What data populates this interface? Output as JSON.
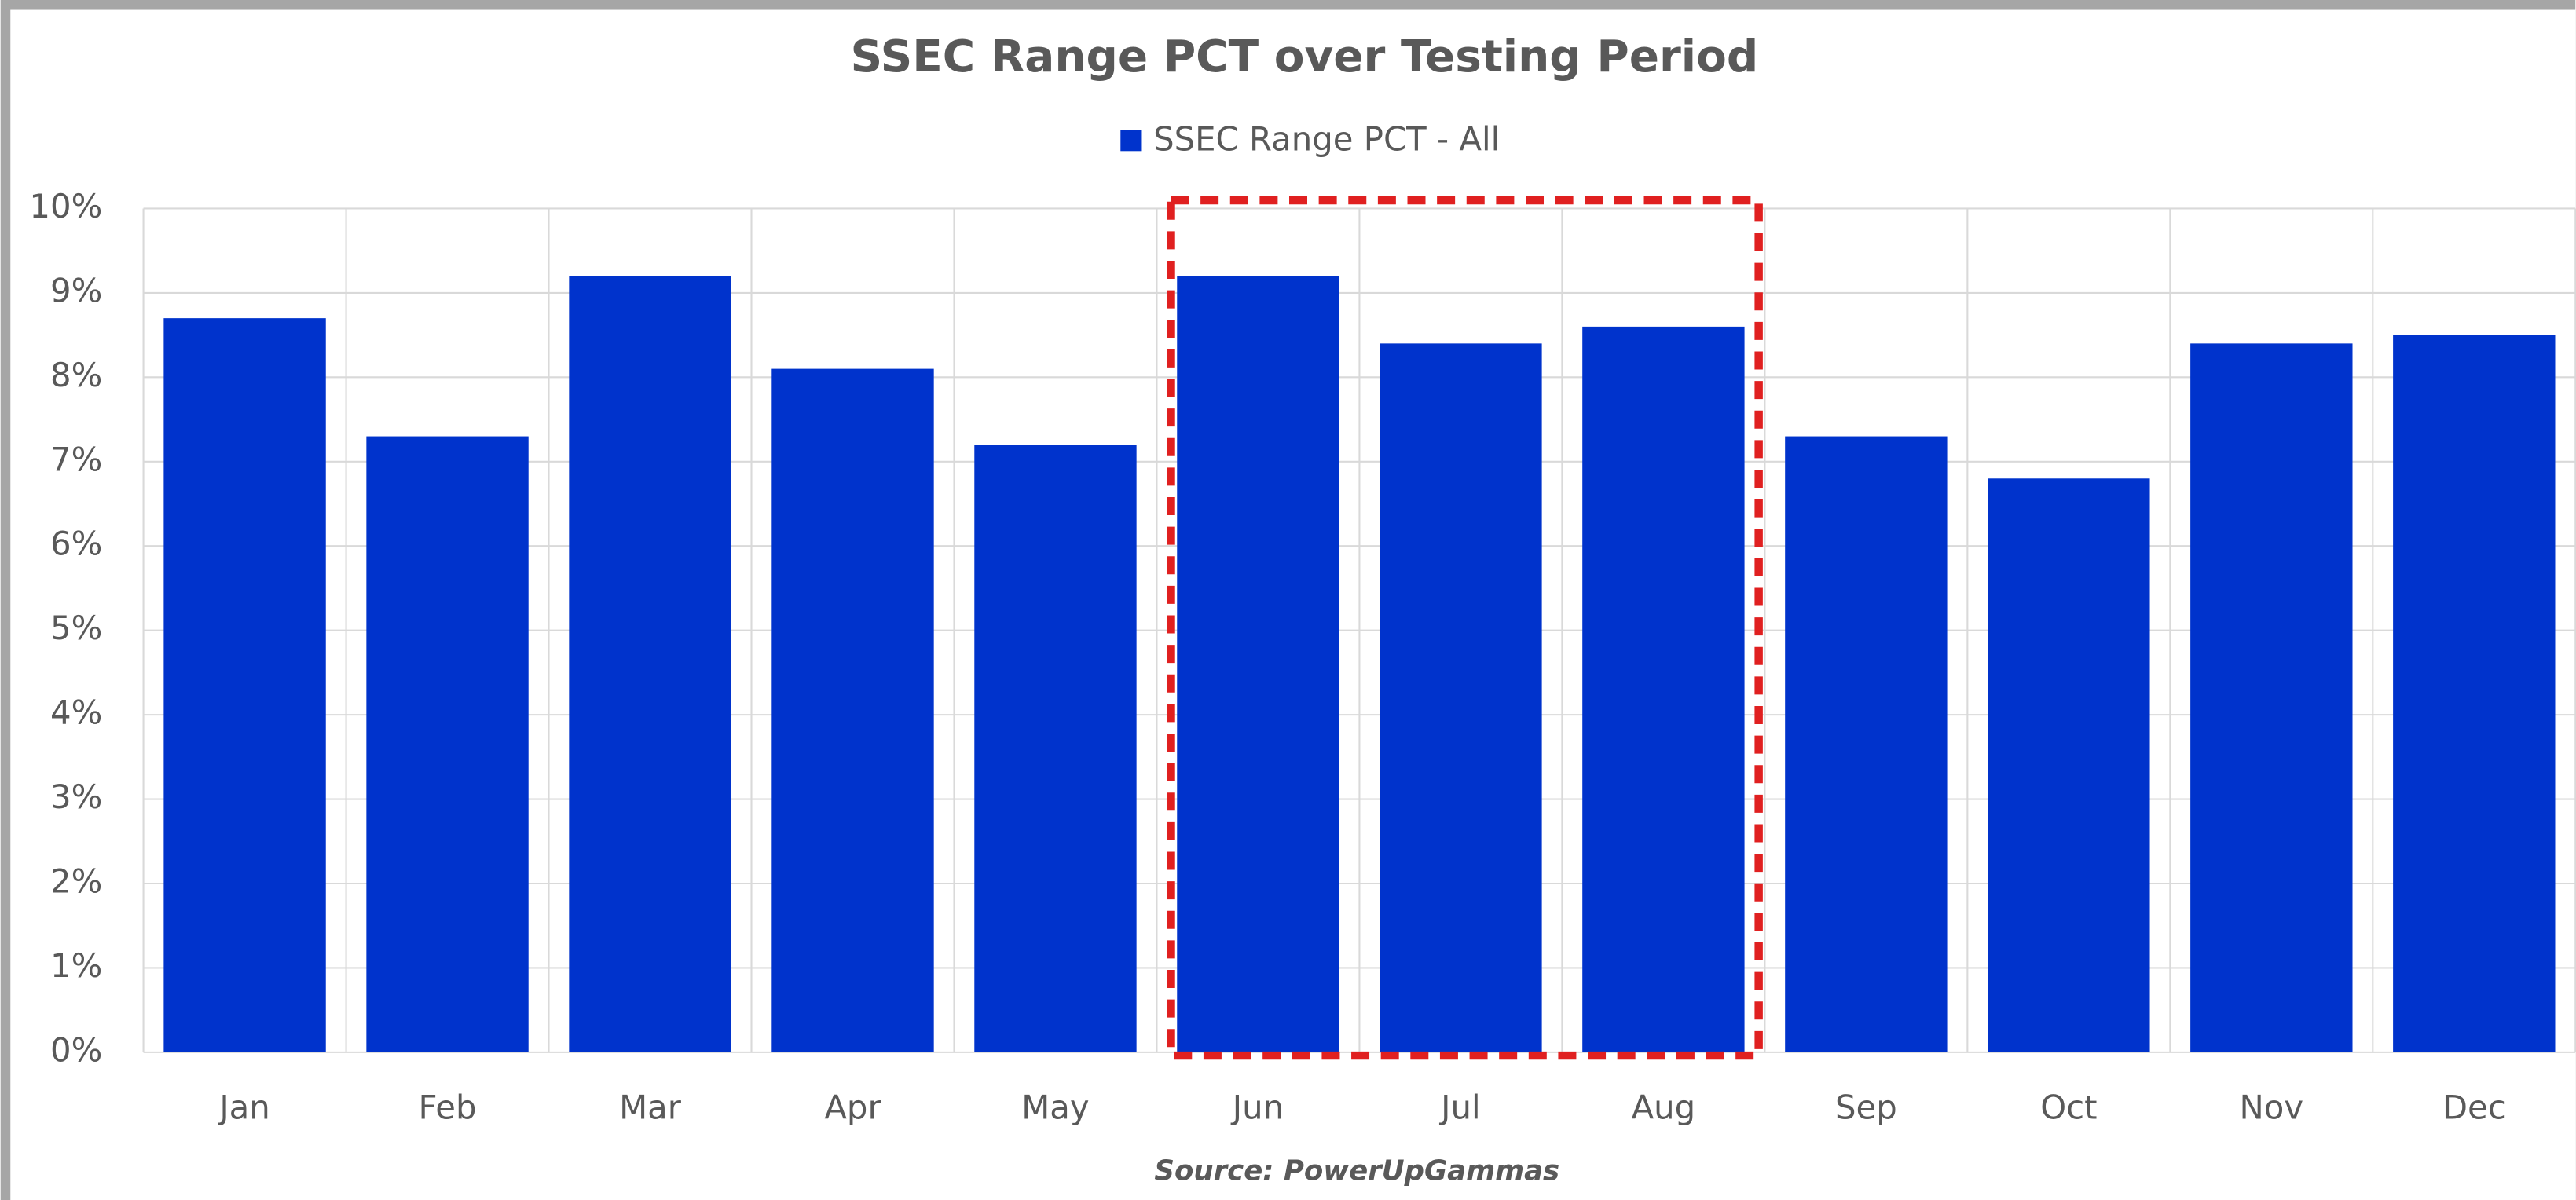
{
  "chart_data": {
    "type": "bar",
    "title": "SSEC Range PCT over Testing Period",
    "source": "Source: PowerUpGammas",
    "categories": [
      "Jan",
      "Feb",
      "Mar",
      "Apr",
      "May",
      "Jun",
      "Jul",
      "Aug",
      "Sep",
      "Oct",
      "Nov",
      "Dec"
    ],
    "series": [
      {
        "name": "SSEC Range PCT - All",
        "color": "#0033cc",
        "values": [
          8.7,
          7.3,
          9.2,
          8.1,
          7.2,
          9.2,
          8.4,
          8.6,
          7.3,
          6.8,
          8.4,
          8.5
        ]
      }
    ],
    "ylim": [
      0,
      10
    ],
    "yticks": [
      {
        "value": 0,
        "label": "0%"
      },
      {
        "value": 1,
        "label": "1%"
      },
      {
        "value": 2,
        "label": "2%"
      },
      {
        "value": 3,
        "label": "3%"
      },
      {
        "value": 4,
        "label": "4%"
      },
      {
        "value": 5,
        "label": "5%"
      },
      {
        "value": 6,
        "label": "6%"
      },
      {
        "value": 7,
        "label": "7%"
      },
      {
        "value": 8,
        "label": "8%"
      },
      {
        "value": 9,
        "label": "9%"
      },
      {
        "value": 10,
        "label": "10%"
      }
    ],
    "grid": true,
    "legend": "top",
    "highlight": {
      "from": "Jun",
      "to": "Aug",
      "color": "#e02020"
    }
  }
}
